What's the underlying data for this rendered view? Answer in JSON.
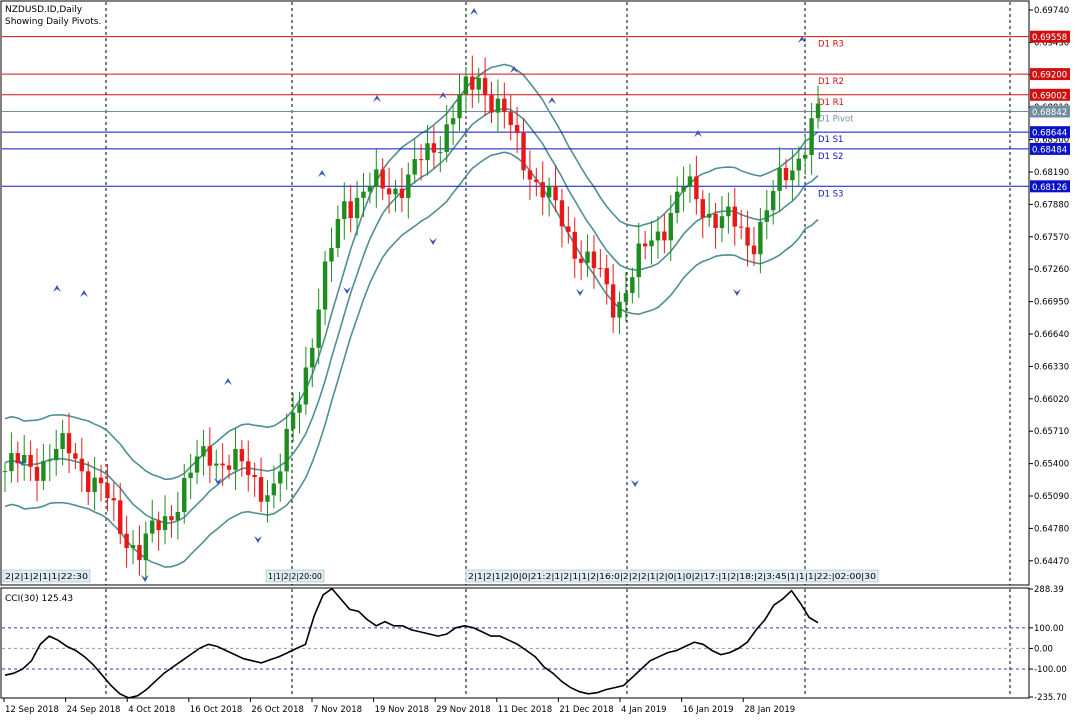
{
  "header": {
    "symbol_line": "NZDUSD.ID,Daily",
    "pivots_line": "Showing Daily Pivots."
  },
  "colors": {
    "bull": "#1e8c1e",
    "bear": "#e81818",
    "band": "#4f8f93",
    "resistance": "#d01010",
    "support": "#0a12c8",
    "pivot": "#708fa0",
    "fractal": "#3c56b8",
    "cci": "#000000",
    "level_dash": "#3030d0",
    "grid": "#000000"
  },
  "x_axis": {
    "labels": [
      "12 Sep 2018",
      "24 Sep 2018",
      "4 Oct 2018",
      "16 Oct 2018",
      "26 Oct 2018",
      "7 Nov 2018",
      "19 Nov 2018",
      "29 Nov 2018",
      "11 Dec 2018",
      "21 Dec 2018",
      "4 Jan 2019",
      "16 Jan 2019",
      "28 Jan 2019"
    ]
  },
  "price_axis": {
    "ticks": [
      "0.69740",
      "0.69430",
      "0.69120",
      "0.68810",
      "0.68500",
      "0.68190",
      "0.67880",
      "0.67570",
      "0.67260",
      "0.66950",
      "0.66640",
      "0.66330",
      "0.66020",
      "0.65710",
      "0.65400",
      "0.65090",
      "0.64780",
      "0.64470"
    ]
  },
  "pivots": [
    {
      "name": "D1 R3",
      "value": 0.69558,
      "label": "0.69558",
      "kind": "resistance"
    },
    {
      "name": "D1 R2",
      "value": 0.692,
      "label": "0.69200",
      "kind": "resistance"
    },
    {
      "name": "D1 R1",
      "value": 0.69002,
      "label": "0.69002",
      "kind": "resistance"
    },
    {
      "name": "D1 Pivot",
      "value": 0.68842,
      "label": "0.68842",
      "kind": "pivot"
    },
    {
      "name": "D1 S1",
      "value": 0.68644,
      "label": "0.68644",
      "kind": "support"
    },
    {
      "name": "D1 S2",
      "value": 0.68484,
      "label": "0.68484",
      "kind": "support"
    },
    {
      "name": "D1 S3",
      "value": 0.68126,
      "label": "0.68126",
      "kind": "support"
    }
  ],
  "session_strips": [
    {
      "text": "2|2|1|2|1|1|22:30"
    },
    {
      "text": "1|1|2|2|20:00"
    },
    {
      "text": "2|1|2|1|2|0|0|21:2|1|2|1|1|2|16:0|2|2|2|1|2|0|1|0|2|17:|1|2|18:|2|3:45|1|1|1|22:|02:00|30"
    }
  ],
  "indicator": {
    "label": "CCI(30) 125.43",
    "ticks": [
      "288.39",
      "100.00",
      "0.00",
      "-100.00",
      "-235.70"
    ],
    "range": [
      -235.7,
      288.39
    ],
    "levels": [
      100,
      0,
      -100
    ]
  },
  "chart_data": [
    {
      "type": "candlestick",
      "title": "NZDUSD.ID,Daily",
      "ylim": [
        0.6431,
        0.6989
      ],
      "x": [
        "12 Sep 2018",
        "24 Sep 2018",
        "4 Oct 2018",
        "16 Oct 2018",
        "26 Oct 2018",
        "7 Nov 2018",
        "19 Nov 2018",
        "29 Nov 2018",
        "11 Dec 2018",
        "21 Dec 2018",
        "4 Jan 2019",
        "16 Jan 2019",
        "28 Jan 2019"
      ],
      "ohlc_close_sample": [
        0.654,
        0.656,
        0.646,
        0.656,
        0.652,
        0.68,
        0.682,
        0.692,
        0.68,
        0.67,
        0.681,
        0.676,
        0.688
      ],
      "series": [
        {
          "name": "D1 R3",
          "value": 0.69558
        },
        {
          "name": "D1 R2",
          "value": 0.692
        },
        {
          "name": "D1 R1",
          "value": 0.69002
        },
        {
          "name": "D1 Pivot",
          "value": 0.68842
        },
        {
          "name": "D1 S1",
          "value": 0.68644
        },
        {
          "name": "D1 S2",
          "value": 0.68484
        },
        {
          "name": "D1 S3",
          "value": 0.68126
        }
      ],
      "grid": false
    },
    {
      "type": "line",
      "title": "CCI(30) 125.43",
      "ylim": [
        -235.7,
        288.39
      ],
      "values": [
        -130,
        -120,
        -100,
        -60,
        20,
        60,
        40,
        10,
        -10,
        -40,
        -80,
        -130,
        -180,
        -220,
        -240,
        -230,
        -200,
        -160,
        -120,
        -90,
        -60,
        -30,
        0,
        20,
        10,
        -10,
        -30,
        -50,
        -60,
        -70,
        -55,
        -40,
        -20,
        0,
        20,
        160,
        260,
        290,
        240,
        190,
        180,
        140,
        110,
        130,
        110,
        110,
        90,
        80,
        70,
        60,
        70,
        100,
        110,
        100,
        80,
        60,
        60,
        40,
        20,
        -10,
        -40,
        -90,
        -120,
        -160,
        -190,
        -210,
        -220,
        -215,
        -200,
        -190,
        -180,
        -140,
        -100,
        -60,
        -40,
        -20,
        -10,
        10,
        30,
        20,
        -10,
        -30,
        -20,
        0,
        30,
        90,
        140,
        210,
        240,
        280,
        220,
        150,
        125
      ]
    }
  ]
}
